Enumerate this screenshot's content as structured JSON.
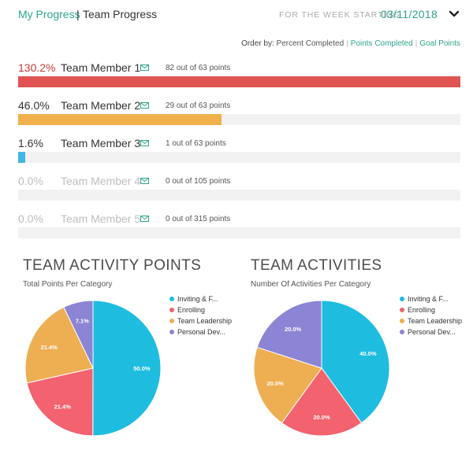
{
  "header": {
    "my_progress": "My Progress",
    "separator": "|",
    "team_progress": "Team Progress",
    "week_label": "FOR THE WEEK STARTING",
    "week_date": "03/11/2018"
  },
  "order_by": {
    "label": "Order by:",
    "options": [
      "Percent Completed",
      "Points Completed",
      "Goal Points"
    ]
  },
  "members": [
    {
      "percent": "130.2%",
      "name": "Team Member 1",
      "points": "82 out of 63 points",
      "progress": 1.0,
      "color": "#e05454",
      "pct_color": "#c23a3a"
    },
    {
      "percent": "46.0%",
      "name": "Team Member 2",
      "points": "29 out of 63 points",
      "progress": 0.46,
      "color": "#f0b04c",
      "pct_color": "#333333"
    },
    {
      "percent": "1.6%",
      "name": "Team Member 3",
      "points": "1 out of 63 points",
      "progress": 0.016,
      "color": "#41b7e3",
      "pct_color": "#333333"
    },
    {
      "percent": "0.0%",
      "name": "Team Member 4",
      "points": "0 out of 105 points",
      "progress": 0,
      "color": "#cccccc",
      "pct_color": "#bdbdbd"
    },
    {
      "percent": "0.0%",
      "name": "Team Member 5",
      "points": "0 out of 315 points",
      "progress": 0,
      "color": "#cccccc",
      "pct_color": "#bdbdbd"
    }
  ],
  "charts": {
    "activity_points": {
      "title": "TEAM ACTIVITY POINTS",
      "subtitle": "Total Points Per Category"
    },
    "activities": {
      "title": "TEAM ACTIVITIES",
      "subtitle": "Number Of Activities Per Category"
    }
  },
  "chart_data": [
    {
      "type": "pie",
      "title": "TEAM ACTIVITY POINTS",
      "subtitle": "Total Points Per Category",
      "categories": [
        "Inviting & F...",
        "Enrolling",
        "Team Leadership",
        "Personal Dev..."
      ],
      "values": [
        50.0,
        21.4,
        21.4,
        7.1
      ],
      "labels": [
        "50.0%",
        "21.4%",
        "21.4%",
        "7.1%"
      ],
      "colors": [
        "#1ebde0",
        "#f2626f",
        "#eeae52",
        "#8c84d4"
      ],
      "legend": "right"
    },
    {
      "type": "pie",
      "title": "TEAM ACTIVITIES",
      "subtitle": "Number Of Activities Per Category",
      "categories": [
        "Inviting & F...",
        "Enrolling",
        "Team Leadership",
        "Personal Dev..."
      ],
      "values": [
        40.0,
        20.0,
        20.0,
        20.0
      ],
      "labels": [
        "40.0%",
        "20.0%",
        "20.0%",
        "20.0%"
      ],
      "colors": [
        "#1ebde0",
        "#f2626f",
        "#eeae52",
        "#8c84d4"
      ],
      "legend": "right"
    }
  ]
}
